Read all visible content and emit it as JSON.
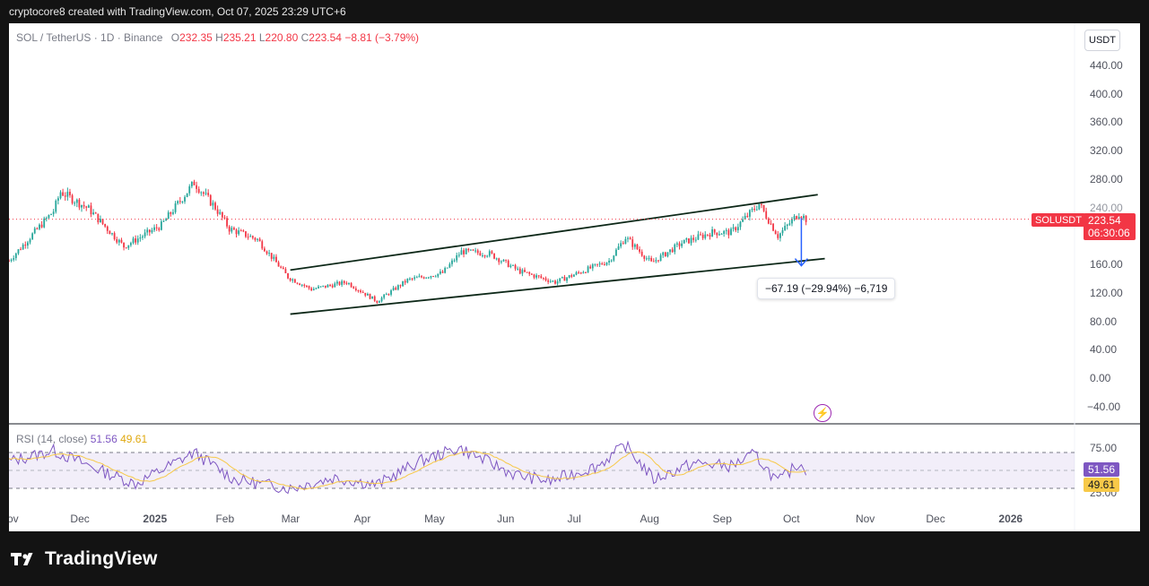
{
  "attribution": "cryptocore8 created with TradingView.com, Oct 07, 2025 23:29 UTC+6",
  "symbol": {
    "title": "SOL / TetherUS · 1D · Binance",
    "o_label": "O",
    "o": "232.35",
    "h_label": "H",
    "h": "235.21",
    "l_label": "L",
    "l": "220.80",
    "c_label": "C",
    "c": "223.54",
    "change": "−8.81 (−3.79%)"
  },
  "currency_button": "USDT",
  "y_axis": [
    "440.00",
    "400.00",
    "360.00",
    "320.00",
    "280.00",
    "240.00",
    "200.00",
    "160.00",
    "120.00",
    "80.00",
    "40.00",
    "0.00",
    "−40.00"
  ],
  "price_tag": {
    "symbol": "SOLUSDT",
    "price": "223.54",
    "countdown": "06:30:06"
  },
  "measure_label": "−67.19 (−29.94%) −6,719",
  "rsi": {
    "name": "RSI",
    "params": "14",
    "source": "close",
    "value": "51.56",
    "ma": "49.61",
    "axis": [
      "75.00",
      "25.00"
    ]
  },
  "x_axis": [
    "ov",
    "Dec",
    "2025",
    "Feb",
    "Mar",
    "Apr",
    "May",
    "Jun",
    "Jul",
    "Aug",
    "Sep",
    "Oct",
    "Nov",
    "Dec",
    "2026"
  ],
  "colors": {
    "up": "#26a69a",
    "down": "#f23645",
    "rsi": "#7e57c2",
    "rsi_ma": "#f7c948",
    "accent": "#2962ff"
  },
  "footer_brand": "TradingView",
  "chart_data": {
    "type": "candlestick",
    "title": "SOL / TetherUS · 1D · Binance",
    "x_range": [
      "2024-11-01",
      "2026-01-15"
    ],
    "ylim": [
      -40,
      460
    ],
    "anchors": [
      {
        "x": "2024-11-01",
        "y": 165
      },
      {
        "x": "2024-11-20",
        "y": 235
      },
      {
        "x": "2024-11-23",
        "y": 262
      },
      {
        "x": "2024-12-05",
        "y": 238
      },
      {
        "x": "2024-12-20",
        "y": 185
      },
      {
        "x": "2025-01-05",
        "y": 215
      },
      {
        "x": "2025-01-19",
        "y": 275
      },
      {
        "x": "2025-01-28",
        "y": 240
      },
      {
        "x": "2025-02-03",
        "y": 210
      },
      {
        "x": "2025-02-15",
        "y": 195
      },
      {
        "x": "2025-02-28",
        "y": 142
      },
      {
        "x": "2025-03-10",
        "y": 125
      },
      {
        "x": "2025-03-25",
        "y": 135
      },
      {
        "x": "2025-04-07",
        "y": 108
      },
      {
        "x": "2025-04-20",
        "y": 138
      },
      {
        "x": "2025-05-05",
        "y": 148
      },
      {
        "x": "2025-05-13",
        "y": 178
      },
      {
        "x": "2025-05-25",
        "y": 175
      },
      {
        "x": "2025-06-07",
        "y": 150
      },
      {
        "x": "2025-06-22",
        "y": 135
      },
      {
        "x": "2025-07-05",
        "y": 152
      },
      {
        "x": "2025-07-15",
        "y": 165
      },
      {
        "x": "2025-07-22",
        "y": 198
      },
      {
        "x": "2025-08-02",
        "y": 162
      },
      {
        "x": "2025-08-15",
        "y": 190
      },
      {
        "x": "2025-08-28",
        "y": 205
      },
      {
        "x": "2025-09-05",
        "y": 205
      },
      {
        "x": "2025-09-17",
        "y": 245
      },
      {
        "x": "2025-09-25",
        "y": 200
      },
      {
        "x": "2025-10-04",
        "y": 232
      },
      {
        "x": "2025-10-07",
        "y": 223.54
      }
    ],
    "channel": [
      {
        "name": "upper",
        "from": {
          "x": "2025-03-01",
          "y": 152
        },
        "to": {
          "x": "2025-10-12",
          "y": 258
        }
      },
      {
        "name": "lower",
        "from": {
          "x": "2025-03-01",
          "y": 90
        },
        "to": {
          "x": "2025-10-15",
          "y": 168
        }
      }
    ],
    "measure": {
      "from": {
        "x": "2025-10-05",
        "y": 225
      },
      "to": {
        "x": "2025-10-05",
        "y": 158
      }
    },
    "rsi_anchors": [
      {
        "x": "2024-11-01",
        "y": 60
      },
      {
        "x": "2024-11-20",
        "y": 72
      },
      {
        "x": "2024-12-10",
        "y": 50
      },
      {
        "x": "2024-12-25",
        "y": 35
      },
      {
        "x": "2025-01-19",
        "y": 70
      },
      {
        "x": "2025-02-05",
        "y": 40
      },
      {
        "x": "2025-03-01",
        "y": 30
      },
      {
        "x": "2025-03-20",
        "y": 42
      },
      {
        "x": "2025-04-07",
        "y": 34
      },
      {
        "x": "2025-04-25",
        "y": 60
      },
      {
        "x": "2025-05-12",
        "y": 75
      },
      {
        "x": "2025-06-05",
        "y": 45
      },
      {
        "x": "2025-06-20",
        "y": 38
      },
      {
        "x": "2025-07-10",
        "y": 55
      },
      {
        "x": "2025-07-22",
        "y": 78
      },
      {
        "x": "2025-08-03",
        "y": 40
      },
      {
        "x": "2025-08-20",
        "y": 58
      },
      {
        "x": "2025-09-05",
        "y": 55
      },
      {
        "x": "2025-09-15",
        "y": 68
      },
      {
        "x": "2025-09-25",
        "y": 37
      },
      {
        "x": "2025-10-04",
        "y": 58
      },
      {
        "x": "2025-10-07",
        "y": 51.56
      }
    ]
  }
}
